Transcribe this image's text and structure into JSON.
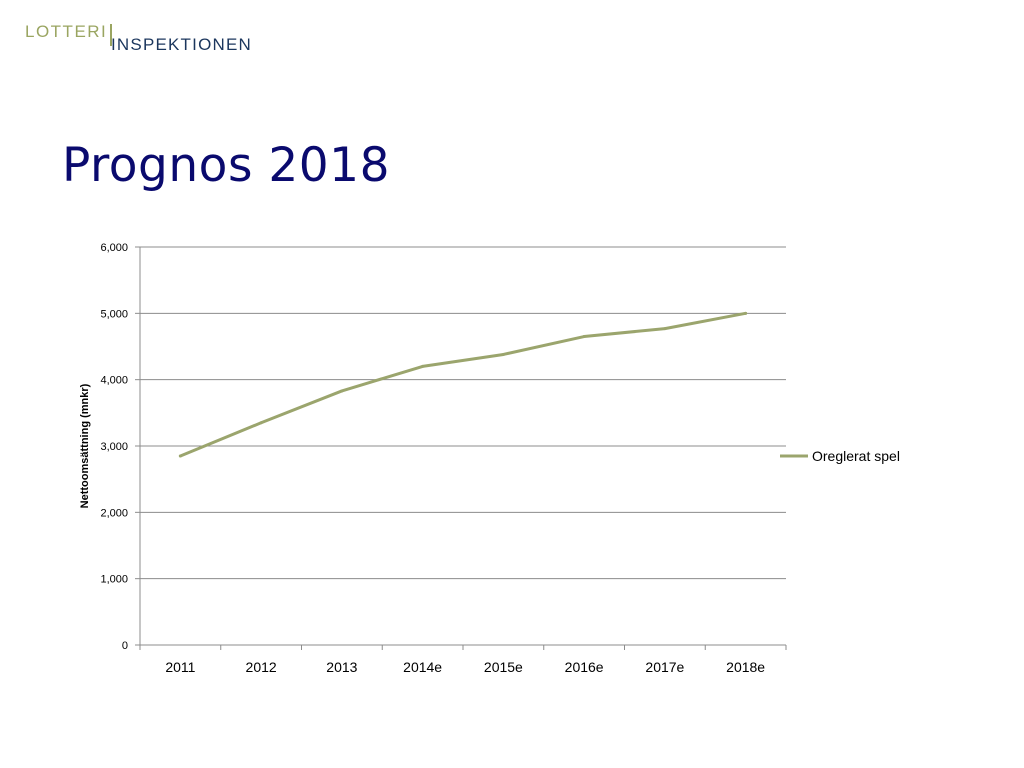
{
  "logo": {
    "top_text": "LOTTERI",
    "bottom_text": "INSPEKTIONEN"
  },
  "slide": {
    "title": "Prognos 2018"
  },
  "colors": {
    "series": "#9ba56d",
    "gridline": "#8c8c8c",
    "axis": "#8c8c8c",
    "title": "#0a0a6e"
  },
  "chart_data": {
    "type": "line",
    "categories": [
      "2011",
      "2012",
      "2013",
      "2014e",
      "2015e",
      "2016e",
      "2017e",
      "2018e"
    ],
    "series": [
      {
        "name": "Oreglerat spel",
        "values": [
          2850,
          3350,
          3830,
          4200,
          4380,
          4650,
          4770,
          5000
        ]
      }
    ],
    "yticks": [
      "0",
      "1,000",
      "2,000",
      "3,000",
      "4,000",
      "5,000",
      "6,000"
    ],
    "ylim": [
      0,
      6000
    ],
    "ylabel": "Nettoomsättning (mnkr)",
    "xlabel": "",
    "grid": true,
    "legend": "right"
  }
}
